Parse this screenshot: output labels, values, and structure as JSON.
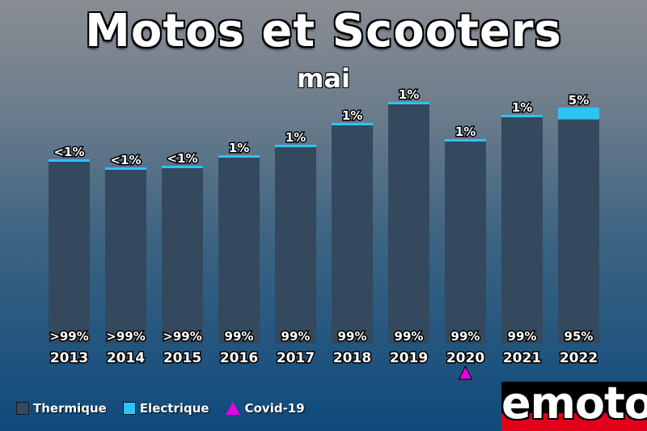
{
  "chart_data": {
    "type": "bar",
    "title": "Motos et Scooters",
    "subtitle": "mai",
    "categories": [
      "2013",
      "2014",
      "2015",
      "2016",
      "2017",
      "2018",
      "2019",
      "2020",
      "2021",
      "2022"
    ],
    "totals": [
      228,
      218,
      220,
      233,
      246,
      273,
      299,
      253,
      283,
      292
    ],
    "series": [
      {
        "name": "Thermique",
        "color": "#34495e",
        "labels": [
          ">99%",
          ">99%",
          ">99%",
          "99%",
          "99%",
          "99%",
          "99%",
          "99%",
          "99%",
          "95%"
        ]
      },
      {
        "name": "Electrique",
        "color": "#2ec3f5",
        "labels": [
          "<1%",
          "<1%",
          "<1%",
          "1%",
          "1%",
          "1%",
          "1%",
          "1%",
          "1%",
          "5%"
        ],
        "share": [
          0.005,
          0.005,
          0.005,
          0.01,
          0.01,
          0.01,
          0.01,
          0.01,
          0.01,
          0.05
        ]
      }
    ],
    "markers": [
      {
        "category": "2020",
        "name": "Covid-19",
        "color": "#e600e6",
        "shape": "triangle"
      }
    ],
    "ylim": [
      0,
      300
    ],
    "grid": false,
    "legend_position": "bottom-left"
  },
  "legend": {
    "thermique": "Thermique",
    "electrique": "Electrique",
    "covid": "Covid-19"
  },
  "logo": {
    "text": "emoto"
  }
}
